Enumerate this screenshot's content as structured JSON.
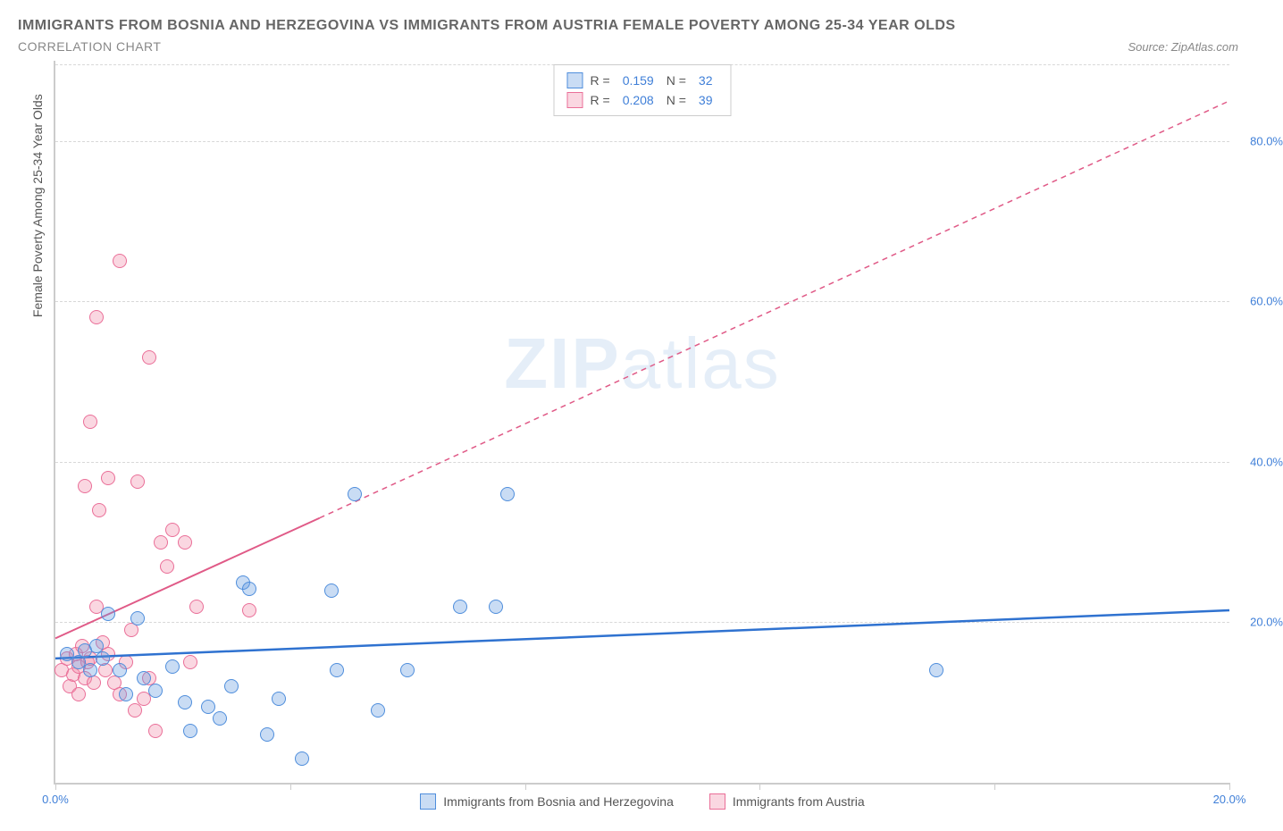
{
  "title": "IMMIGRANTS FROM BOSNIA AND HERZEGOVINA VS IMMIGRANTS FROM AUSTRIA FEMALE POVERTY AMONG 25-34 YEAR OLDS",
  "subtitle": "CORRELATION CHART",
  "source_label": "Source: ",
  "source_value": "ZipAtlas.com",
  "y_axis_label": "Female Poverty Among 25-34 Year Olds",
  "watermark_a": "ZIP",
  "watermark_b": "atlas",
  "chart": {
    "type": "scatter",
    "xlim": [
      0,
      20
    ],
    "ylim": [
      0,
      90
    ],
    "x_ticks": [
      0,
      4,
      8,
      12,
      16,
      20
    ],
    "x_tick_labels": [
      "0.0%",
      "",
      "",
      "",
      "",
      "20.0%"
    ],
    "y_ticks": [
      20,
      40,
      60,
      80
    ],
    "y_tick_labels": [
      "20.0%",
      "40.0%",
      "60.0%",
      "80.0%"
    ],
    "grid_color": "#d8d8d8",
    "background_color": "#ffffff",
    "axis_color": "#cccccc",
    "tick_label_color": "#3f7fd8",
    "point_radius": 8,
    "series": [
      {
        "name": "Immigrants from Bosnia and Herzegovina",
        "color_fill": "rgba(99,155,224,0.35)",
        "color_stroke": "#4f8edc",
        "R": "0.159",
        "N": "32",
        "trend_solid": {
          "x1": 0,
          "y1": 15.5,
          "x2": 20,
          "y2": 21.5
        },
        "trend_color": "#2f72d0",
        "trend_width": 2.5,
        "points": [
          [
            0.2,
            16
          ],
          [
            0.4,
            15
          ],
          [
            0.5,
            16.5
          ],
          [
            0.6,
            14
          ],
          [
            0.7,
            17
          ],
          [
            0.8,
            15.5
          ],
          [
            0.9,
            21
          ],
          [
            1.1,
            14
          ],
          [
            1.2,
            11
          ],
          [
            1.4,
            20.5
          ],
          [
            1.5,
            13
          ],
          [
            1.7,
            11.5
          ],
          [
            2.0,
            14.5
          ],
          [
            2.2,
            10
          ],
          [
            2.3,
            6.5
          ],
          [
            2.6,
            9.5
          ],
          [
            2.8,
            8
          ],
          [
            3.0,
            12
          ],
          [
            3.2,
            25
          ],
          [
            3.3,
            24.2
          ],
          [
            3.6,
            6
          ],
          [
            3.8,
            10.5
          ],
          [
            4.2,
            3
          ],
          [
            4.7,
            24
          ],
          [
            4.8,
            14
          ],
          [
            5.1,
            36
          ],
          [
            5.5,
            9
          ],
          [
            6.0,
            14
          ],
          [
            6.9,
            22
          ],
          [
            7.5,
            22
          ],
          [
            7.7,
            36
          ],
          [
            15.0,
            14
          ]
        ]
      },
      {
        "name": "Immigrants from Austria",
        "color_fill": "rgba(240,140,170,0.35)",
        "color_stroke": "#ea6f98",
        "R": "0.208",
        "N": "39",
        "trend_solid": {
          "x1": 0,
          "y1": 18,
          "x2": 4.5,
          "y2": 33
        },
        "trend_dashed": {
          "x1": 4.5,
          "y1": 33,
          "x2": 20,
          "y2": 85
        },
        "trend_color": "#e05a87",
        "trend_width": 2,
        "points": [
          [
            0.1,
            14
          ],
          [
            0.2,
            15.5
          ],
          [
            0.25,
            12
          ],
          [
            0.3,
            13.5
          ],
          [
            0.35,
            16
          ],
          [
            0.4,
            11
          ],
          [
            0.4,
            14.5
          ],
          [
            0.45,
            17
          ],
          [
            0.5,
            13
          ],
          [
            0.5,
            37
          ],
          [
            0.55,
            15
          ],
          [
            0.6,
            15.5
          ],
          [
            0.6,
            45
          ],
          [
            0.65,
            12.5
          ],
          [
            0.7,
            58
          ],
          [
            0.7,
            22
          ],
          [
            0.75,
            34
          ],
          [
            0.8,
            17.5
          ],
          [
            0.85,
            14
          ],
          [
            0.9,
            16
          ],
          [
            0.9,
            38
          ],
          [
            1.0,
            12.5
          ],
          [
            1.1,
            11
          ],
          [
            1.1,
            65
          ],
          [
            1.2,
            15
          ],
          [
            1.3,
            19
          ],
          [
            1.35,
            9
          ],
          [
            1.4,
            37.5
          ],
          [
            1.5,
            10.5
          ],
          [
            1.6,
            13
          ],
          [
            1.6,
            53
          ],
          [
            1.7,
            6.5
          ],
          [
            1.8,
            30
          ],
          [
            1.9,
            27
          ],
          [
            2.0,
            31.5
          ],
          [
            2.2,
            30
          ],
          [
            2.3,
            15
          ],
          [
            2.4,
            22
          ],
          [
            3.3,
            21.5
          ]
        ]
      }
    ]
  },
  "legend_bottom": [
    {
      "label": "Immigrants from Bosnia and Herzegovina",
      "fill": "rgba(99,155,224,0.35)",
      "stroke": "#4f8edc"
    },
    {
      "label": "Immigrants from Austria",
      "fill": "rgba(240,140,170,0.35)",
      "stroke": "#ea6f98"
    }
  ],
  "legend_top_labels": {
    "R": "R =",
    "N": "N ="
  }
}
